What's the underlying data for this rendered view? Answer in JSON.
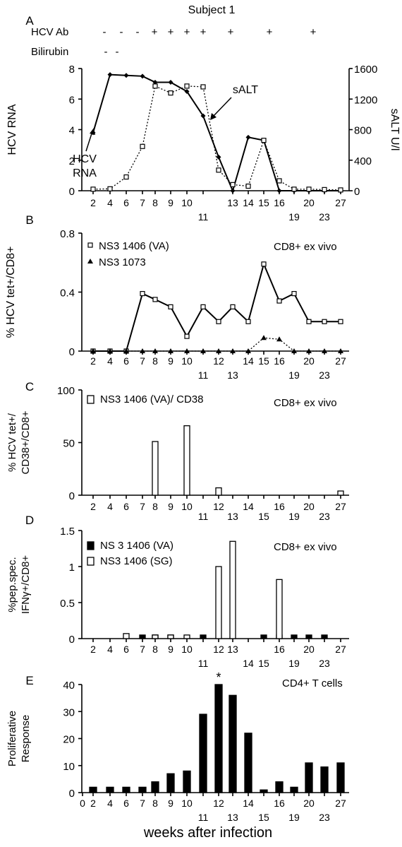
{
  "subject_title": "Subject 1",
  "xlabel": "weeks after infection",
  "colors": {
    "ink": "#000000",
    "open_marker": "#ffffff",
    "series_line": "#000000"
  },
  "chart_data": [
    {
      "panel": "A",
      "type": "line",
      "ylabel": "HCV RNA",
      "y2label": "sALT U/l",
      "ylim": [
        0,
        8
      ],
      "yticks": [
        "0",
        "2",
        "4",
        "6",
        "8"
      ],
      "y2lim": [
        0,
        1600
      ],
      "y2ticks": [
        "0",
        "400",
        "800",
        "1200",
        "1600"
      ],
      "x_ticks_top": [
        "2",
        "4",
        "6",
        "7",
        "8",
        "9",
        "10",
        "13",
        "14",
        "15",
        "16",
        "20",
        "27"
      ],
      "x_ticks_bottom": [
        "11",
        "19",
        "23"
      ],
      "status_rows": [
        {
          "label": "HCV Ab",
          "marks": [
            "-",
            "-",
            "-",
            "+",
            "+",
            "+",
            "+",
            "+",
            "+",
            "+"
          ]
        },
        {
          "label": "Bilirubin",
          "marks": [
            "-",
            "-"
          ]
        }
      ],
      "annotations": [
        {
          "text": "sALT",
          "series": "sALT"
        },
        {
          "text": "HCV",
          "series": "HCV RNA"
        },
        {
          "text": "RNA",
          "series": "HCV RNA"
        }
      ],
      "series": [
        {
          "key": "rna",
          "marker": "filled-diamond",
          "style": "solid",
          "axis": "left",
          "x": [
            "2",
            "4",
            "6",
            "7",
            "8",
            "9",
            "10",
            "11",
            "12",
            "13",
            "14",
            "15",
            "16",
            "19",
            "20",
            "23",
            "27"
          ],
          "values": [
            3.8,
            7.6,
            7.55,
            7.5,
            7.1,
            7.1,
            6.5,
            4.9,
            2.2,
            0,
            3.5,
            3.3,
            0,
            0,
            0,
            0,
            0
          ]
        },
        {
          "key": "salt",
          "marker": "open-square",
          "style": "dotted",
          "axis": "right",
          "x": [
            "2",
            "4",
            "6",
            "7",
            "8",
            "9",
            "10",
            "11",
            "12",
            "13",
            "14",
            "15",
            "16",
            "19",
            "20",
            "23",
            "27"
          ],
          "values": [
            20,
            25,
            180,
            580,
            1370,
            1280,
            1370,
            1360,
            270,
            80,
            60,
            660,
            130,
            20,
            20,
            15,
            10
          ]
        }
      ]
    },
    {
      "panel": "B",
      "type": "line",
      "ylabel": "% HCV tet+/CD8+",
      "ylim": [
        0,
        0.8
      ],
      "yticks": [
        "0",
        "0.4",
        "0.8"
      ],
      "note": "CD8+ ex vivo",
      "x_ticks_top": [
        "2",
        "4",
        "6",
        "7",
        "8",
        "9",
        "10",
        "12",
        "14",
        "15",
        "16",
        "20",
        "27"
      ],
      "x_ticks_bottom": [
        "11",
        "13",
        "19",
        "23"
      ],
      "series": [
        {
          "name": "NS3 1406 (VA)",
          "marker": "open-square",
          "style": "solid",
          "x": [
            "2",
            "4",
            "6",
            "7",
            "8",
            "9",
            "10",
            "11",
            "12",
            "13",
            "14",
            "15",
            "16",
            "19",
            "20",
            "23",
            "27"
          ],
          "values": [
            0,
            0,
            0,
            0.39,
            0.35,
            0.3,
            0.1,
            0.3,
            0.2,
            0.3,
            0.2,
            0.59,
            0.34,
            0.39,
            0.2,
            0.2,
            0.2
          ]
        },
        {
          "name": "NS3 1073",
          "marker": "filled-triangle",
          "style": "dotted",
          "x": [
            "2",
            "4",
            "6",
            "7",
            "8",
            "9",
            "10",
            "11",
            "12",
            "13",
            "14",
            "15",
            "16",
            "19",
            "20",
            "23",
            "27"
          ],
          "values": [
            0,
            0,
            0,
            0,
            0,
            0,
            0,
            0,
            0,
            0,
            0,
            0.09,
            0.08,
            0,
            0,
            0,
            0
          ]
        }
      ]
    },
    {
      "panel": "C",
      "type": "bar",
      "ylabel_lines": [
        "% HCV tet+/",
        "CD38+/CD8+"
      ],
      "ylim": [
        0,
        100
      ],
      "yticks": [
        "0",
        "50",
        "100"
      ],
      "note": "CD8+ ex vivo",
      "x_ticks_top": [
        "2",
        "4",
        "6",
        "7",
        "8",
        "9",
        "10",
        "12",
        "14",
        "16",
        "20",
        "27"
      ],
      "x_ticks_bottom": [
        "11",
        "13",
        "15",
        "19",
        "23"
      ],
      "series": [
        {
          "name": "NS3 1406 (VA)/ CD38",
          "fill": "open",
          "x": [
            "8",
            "10",
            "12",
            "27"
          ],
          "values": [
            51,
            66,
            7,
            4
          ]
        }
      ]
    },
    {
      "panel": "D",
      "type": "bar",
      "ylabel_lines": [
        "%pep.spec.",
        "IFNγ+/CD8+"
      ],
      "ylim": [
        0,
        1.5
      ],
      "yticks": [
        "0",
        "0.5",
        "1",
        "1.5"
      ],
      "note": "CD8+ ex vivo",
      "x_ticks_top": [
        "2",
        "4",
        "6",
        "7",
        "8",
        "9",
        "10",
        "12",
        "13",
        "16",
        "20",
        "27"
      ],
      "x_ticks_bottom": [
        "11",
        "14",
        "15",
        "19",
        "23"
      ],
      "series": [
        {
          "name": "NS 3 1406 (VA)",
          "fill": "solid",
          "x": [
            "7",
            "8",
            "9",
            "11",
            "15",
            "16",
            "19",
            "20",
            "23"
          ],
          "values": [
            0.05,
            0.05,
            0.05,
            0.05,
            0.05,
            0.05,
            0.05,
            0.05,
            0.05
          ]
        },
        {
          "name": "NS3 1406 (SG)",
          "fill": "open",
          "x": [
            "6",
            "8",
            "9",
            "10",
            "12",
            "13",
            "16"
          ],
          "values": [
            0.07,
            0.05,
            0.05,
            0.05,
            1.0,
            1.35,
            0.82
          ]
        }
      ]
    },
    {
      "panel": "E",
      "type": "bar",
      "ylabel_lines": [
        "Proliferative",
        "Response"
      ],
      "ylim": [
        0,
        40
      ],
      "yticks": [
        "0",
        "10",
        "20",
        "30",
        "40"
      ],
      "note": "CD4+ T cells",
      "asterisk": "*",
      "x_ticks_top": [
        "0",
        "2",
        "4",
        "6",
        "7",
        "8",
        "9",
        "10",
        "12",
        "14",
        "16",
        "20",
        "27"
      ],
      "x_ticks_bottom": [
        "11",
        "13",
        "15",
        "19",
        "23"
      ],
      "series": [
        {
          "name": "",
          "fill": "solid",
          "x": [
            "2",
            "4",
            "6",
            "7",
            "8",
            "9",
            "10",
            "11",
            "12",
            "13",
            "14",
            "15",
            "16",
            "19",
            "20",
            "23",
            "27"
          ],
          "values": [
            2,
            2,
            2,
            2,
            4,
            7,
            8,
            29,
            40,
            36,
            22,
            1,
            4,
            2,
            11,
            9.5,
            11
          ]
        }
      ]
    }
  ]
}
